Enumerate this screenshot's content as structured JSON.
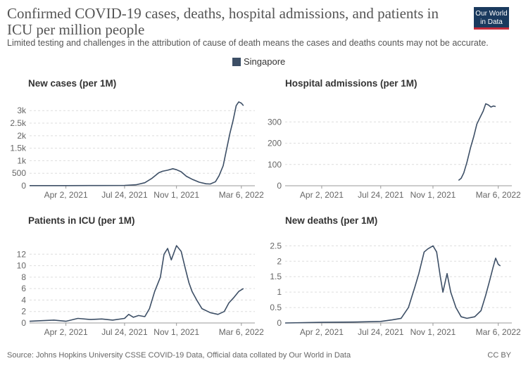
{
  "header": {
    "title": "Confirmed COVID-19 cases, deaths, hospital admissions, and patients in ICU per million people",
    "subtitle": "Limited testing and challenges in the attribution of cause of death means the cases and deaths counts may not be accurate.",
    "logo_line1": "Our World",
    "logo_line2": "in Data"
  },
  "legend": {
    "label": "Singapore",
    "color": "#3d4f66"
  },
  "footer": {
    "source": "Source: Johns Hopkins University CSSE COVID-19 Data, Official data collated by Our World in Data",
    "license": "CC BY"
  },
  "chart_data": [
    {
      "type": "line",
      "title": "New cases (per 1M)",
      "series_name": "Singapore",
      "x_ticks": [
        "Apr 2, 2021",
        "Jul 24, 2021",
        "Nov 1, 2021",
        "Mar 6, 2022"
      ],
      "y_ticks": [
        "0",
        "500",
        "1k",
        "1.5k",
        "2k",
        "2.5k",
        "3k"
      ],
      "xlim": [
        "2021-01-22",
        "2022-04-01"
      ],
      "ylim": [
        0,
        3400
      ],
      "grid": true,
      "points": [
        [
          "2021-01-22",
          5
        ],
        [
          "2021-04-02",
          5
        ],
        [
          "2021-06-01",
          8
        ],
        [
          "2021-07-24",
          15
        ],
        [
          "2021-08-15",
          40
        ],
        [
          "2021-09-01",
          120
        ],
        [
          "2021-09-15",
          300
        ],
        [
          "2021-09-28",
          520
        ],
        [
          "2021-10-05",
          580
        ],
        [
          "2021-10-15",
          620
        ],
        [
          "2021-10-25",
          680
        ],
        [
          "2021-11-01",
          640
        ],
        [
          "2021-11-10",
          560
        ],
        [
          "2021-11-20",
          380
        ],
        [
          "2021-12-01",
          260
        ],
        [
          "2021-12-15",
          140
        ],
        [
          "2021-12-28",
          80
        ],
        [
          "2022-01-05",
          70
        ],
        [
          "2022-01-15",
          160
        ],
        [
          "2022-01-22",
          400
        ],
        [
          "2022-01-30",
          800
        ],
        [
          "2022-02-05",
          1400
        ],
        [
          "2022-02-12",
          2100
        ],
        [
          "2022-02-18",
          2600
        ],
        [
          "2022-02-24",
          3200
        ],
        [
          "2022-03-01",
          3350
        ],
        [
          "2022-03-06",
          3300
        ],
        [
          "2022-03-10",
          3200
        ]
      ]
    },
    {
      "type": "line",
      "title": "Hospital admissions (per 1M)",
      "series_name": "Singapore",
      "x_ticks": [
        "Apr 2, 2021",
        "Jul 24, 2021",
        "Nov 1, 2021",
        "Mar 6, 2022"
      ],
      "y_ticks": [
        "0",
        "100",
        "200",
        "300"
      ],
      "xlim": [
        "2021-01-22",
        "2022-04-01"
      ],
      "ylim": [
        0,
        400
      ],
      "grid": true,
      "points": [
        [
          "2021-12-20",
          25
        ],
        [
          "2021-12-25",
          35
        ],
        [
          "2021-12-30",
          60
        ],
        [
          "2022-01-05",
          110
        ],
        [
          "2022-01-12",
          180
        ],
        [
          "2022-01-18",
          230
        ],
        [
          "2022-01-24",
          290
        ],
        [
          "2022-01-30",
          320
        ],
        [
          "2022-02-05",
          350
        ],
        [
          "2022-02-10",
          385
        ],
        [
          "2022-02-15",
          380
        ],
        [
          "2022-02-20",
          370
        ],
        [
          "2022-02-25",
          375
        ],
        [
          "2022-03-01",
          372
        ]
      ]
    },
    {
      "type": "line",
      "title": "Patients in ICU (per 1M)",
      "series_name": "Singapore",
      "x_ticks": [
        "Apr 2, 2021",
        "Jul 24, 2021",
        "Nov 1, 2021",
        "Mar 6, 2022"
      ],
      "y_ticks": [
        "0",
        "2",
        "4",
        "6",
        "8",
        "10",
        "12"
      ],
      "xlim": [
        "2021-01-22",
        "2022-04-01"
      ],
      "ylim": [
        0,
        14
      ],
      "grid": true,
      "points": [
        [
          "2021-01-22",
          0.3
        ],
        [
          "2021-02-15",
          0.4
        ],
        [
          "2021-03-10",
          0.5
        ],
        [
          "2021-04-02",
          0.3
        ],
        [
          "2021-04-25",
          0.8
        ],
        [
          "2021-05-20",
          0.6
        ],
        [
          "2021-06-10",
          0.7
        ],
        [
          "2021-07-01",
          0.5
        ],
        [
          "2021-07-24",
          0.8
        ],
        [
          "2021-08-01",
          1.5
        ],
        [
          "2021-08-10",
          1.0
        ],
        [
          "2021-08-20",
          1.3
        ],
        [
          "2021-09-01",
          1.1
        ],
        [
          "2021-09-10",
          2.5
        ],
        [
          "2021-09-20",
          5.5
        ],
        [
          "2021-10-01",
          8.0
        ],
        [
          "2021-10-08",
          12.0
        ],
        [
          "2021-10-15",
          13.0
        ],
        [
          "2021-10-22",
          11.0
        ],
        [
          "2021-11-01",
          13.5
        ],
        [
          "2021-11-10",
          12.5
        ],
        [
          "2021-11-18",
          9.5
        ],
        [
          "2021-11-25",
          7.0
        ],
        [
          "2021-12-01",
          5.5
        ],
        [
          "2021-12-10",
          4.0
        ],
        [
          "2021-12-20",
          2.5
        ],
        [
          "2022-01-05",
          1.8
        ],
        [
          "2022-01-20",
          1.5
        ],
        [
          "2022-02-01",
          2.0
        ],
        [
          "2022-02-10",
          3.5
        ],
        [
          "2022-02-20",
          4.5
        ],
        [
          "2022-03-01",
          5.5
        ],
        [
          "2022-03-10",
          6.0
        ]
      ]
    },
    {
      "type": "line",
      "title": "New deaths (per 1M)",
      "series_name": "Singapore",
      "x_ticks": [
        "Apr 2, 2021",
        "Jul 24, 2021",
        "Nov 1, 2021",
        "Mar 6, 2022"
      ],
      "y_ticks": [
        "0",
        "0.5",
        "1",
        "1.5",
        "2",
        "2.5"
      ],
      "xlim": [
        "2021-01-22",
        "2022-04-01"
      ],
      "ylim": [
        0,
        2.6
      ],
      "grid": true,
      "points": [
        [
          "2021-01-22",
          0
        ],
        [
          "2021-04-02",
          0.02
        ],
        [
          "2021-06-01",
          0.03
        ],
        [
          "2021-07-24",
          0.05
        ],
        [
          "2021-08-15",
          0.1
        ],
        [
          "2021-09-01",
          0.15
        ],
        [
          "2021-09-15",
          0.5
        ],
        [
          "2021-09-28",
          1.2
        ],
        [
          "2021-10-05",
          1.6
        ],
        [
          "2021-10-15",
          2.3
        ],
        [
          "2021-10-22",
          2.4
        ],
        [
          "2021-11-01",
          2.5
        ],
        [
          "2021-11-08",
          2.3
        ],
        [
          "2021-11-15",
          1.5
        ],
        [
          "2021-11-20",
          1.0
        ],
        [
          "2021-11-28",
          1.6
        ],
        [
          "2021-12-05",
          1.0
        ],
        [
          "2021-12-15",
          0.5
        ],
        [
          "2021-12-25",
          0.2
        ],
        [
          "2022-01-05",
          0.15
        ],
        [
          "2022-01-20",
          0.2
        ],
        [
          "2022-02-01",
          0.4
        ],
        [
          "2022-02-10",
          0.9
        ],
        [
          "2022-02-18",
          1.4
        ],
        [
          "2022-02-24",
          1.8
        ],
        [
          "2022-03-01",
          2.1
        ],
        [
          "2022-03-06",
          1.9
        ],
        [
          "2022-03-10",
          1.85
        ]
      ]
    }
  ]
}
